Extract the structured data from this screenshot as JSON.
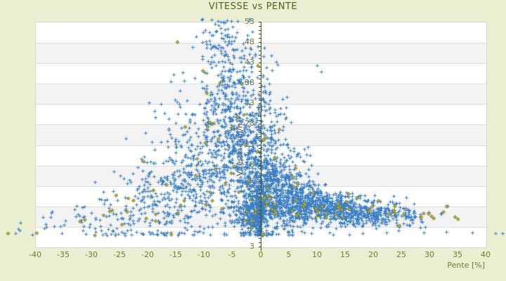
{
  "chart_data": {
    "type": "scatter",
    "title": "VITESSE vs PENTE",
    "xlabel": "Pente [%]",
    "ylabel": "Vitesse [km/h]",
    "xlim": [
      -40,
      40
    ],
    "ylim": [
      -2,
      53
    ],
    "x_ticks": [
      -40,
      -35,
      -30,
      -25,
      -20,
      -15,
      -10,
      -5,
      0,
      5,
      10,
      15,
      20,
      25,
      30,
      35,
      40
    ],
    "y_ticks": [
      53,
      48,
      43,
      38,
      33,
      28,
      23,
      18,
      13,
      8,
      3
    ],
    "y_axis_bottom_edge_label": "3",
    "grid": "horizontal-bands-every-5-units",
    "legend": "none",
    "vertical_axis_at_x": 0,
    "axis_minor_tick_step_y": 1,
    "marker_overflow_beyond_plot": true,
    "series": [
      {
        "name": "vitesse-principale",
        "marker": "plus",
        "color": "#3d80c6",
        "clusters": [
          {
            "n": 170,
            "p": -0.4,
            "v": 6,
            "sp": 0.5,
            "sv": 3
          },
          {
            "n": 180,
            "p": -1.5,
            "v": 12,
            "sp": 1.2,
            "sv": 6
          },
          {
            "n": 150,
            "p": -2,
            "v": 5.5,
            "sp": 1.5,
            "sv": 2.2
          },
          {
            "n": 200,
            "p": -3,
            "v": 22,
            "sp": 2,
            "sv": 9
          },
          {
            "n": 180,
            "p": -5,
            "v": 30,
            "sp": 2.5,
            "sv": 9
          },
          {
            "n": 120,
            "p": -6.5,
            "v": 40,
            "sp": 2.5,
            "sv": 7
          },
          {
            "n": 45,
            "p": -7.5,
            "v": 49,
            "sp": 2.5,
            "sv": 3
          },
          {
            "n": 160,
            "p": -7,
            "v": 18,
            "sp": 3.5,
            "sv": 8
          },
          {
            "n": 150,
            "p": -11,
            "v": 22,
            "sp": 3.5,
            "sv": 9
          },
          {
            "n": 150,
            "p": -13,
            "v": 12,
            "sp": 4,
            "sv": 7
          },
          {
            "n": 110,
            "p": -17,
            "v": 11,
            "sp": 4,
            "sv": 6
          },
          {
            "n": 70,
            "p": -21,
            "v": 8,
            "sp": 3.5,
            "sv": 5
          },
          {
            "n": 45,
            "p": -26,
            "v": 6,
            "sp": 3.5,
            "sv": 3
          },
          {
            "n": 18,
            "p": -32,
            "v": 5,
            "sp": 3,
            "sv": 1.8
          },
          {
            "n": 8,
            "p": -38,
            "v": 4.5,
            "sp": 2.5,
            "sv": 1.2
          },
          {
            "n": 200,
            "p": 1,
            "v": 14,
            "sp": 1.2,
            "sv": 8
          },
          {
            "n": 220,
            "p": 2.5,
            "v": 10.5,
            "sp": 1.8,
            "sv": 5
          },
          {
            "n": 230,
            "p": 5,
            "v": 9.5,
            "sp": 2.2,
            "sv": 3.5
          },
          {
            "n": 230,
            "p": 8,
            "v": 8.5,
            "sp": 2.6,
            "sv": 2.8
          },
          {
            "n": 210,
            "p": 11.5,
            "v": 7.5,
            "sp": 2.8,
            "sv": 2.2
          },
          {
            "n": 170,
            "p": 15,
            "v": 6.8,
            "sp": 3,
            "sv": 2
          },
          {
            "n": 130,
            "p": 18.5,
            "v": 6.2,
            "sp": 2.8,
            "sv": 1.8
          },
          {
            "n": 80,
            "p": 22,
            "v": 5.8,
            "sp": 2.4,
            "sv": 1.6
          },
          {
            "n": 30,
            "p": 25.5,
            "v": 5.2,
            "sp": 2,
            "sv": 1.4
          },
          {
            "n": 10,
            "p": 30,
            "v": 5,
            "sp": 3.5,
            "sv": 1.5
          },
          {
            "n": 70,
            "p": 1.8,
            "v": 27,
            "sp": 1.8,
            "sv": 6
          },
          {
            "n": 22,
            "p": 1.2,
            "v": 38,
            "sp": 1.2,
            "sv": 4
          },
          {
            "n": 60,
            "p": 5,
            "v": 17,
            "sp": 2.5,
            "sv": 4
          }
        ],
        "extra_points": [
          [
            -43.5,
            1.2
          ],
          [
            -42.8,
            1.9
          ],
          [
            -40.5,
            1.0
          ],
          [
            -35.2,
            1.2
          ],
          [
            -31,
            1.1
          ],
          [
            -28,
            1.0
          ],
          [
            -24,
            1.3
          ],
          [
            -19,
            1.1
          ],
          [
            -12,
            1.0
          ],
          [
            -6,
            0.9
          ],
          [
            0.6,
            44.5
          ],
          [
            -0.4,
            47
          ],
          [
            2.1,
            41.2
          ],
          [
            10.1,
            42.3
          ],
          [
            10.8,
            40.8
          ],
          [
            5.2,
            1.0
          ],
          [
            12.3,
            1.4
          ],
          [
            18.1,
            1.2
          ],
          [
            22.4,
            1.5
          ],
          [
            26.5,
            3.2
          ],
          [
            29,
            1.5
          ],
          [
            33,
            1.6
          ],
          [
            37.6,
            1.4
          ],
          [
            41.8,
            1.3
          ],
          [
            43,
            1.3
          ]
        ]
      },
      {
        "name": "vitesse-secondaire",
        "marker": "diamond",
        "color": "#b3b332",
        "stroke": "#6f6f1f",
        "clusters": [
          {
            "n": 10,
            "p": -20,
            "v": 8,
            "sp": 6,
            "sv": 4
          },
          {
            "n": 14,
            "p": -11,
            "v": 16,
            "sp": 5,
            "sv": 8
          },
          {
            "n": 12,
            "p": -5,
            "v": 22,
            "sp": 3,
            "sv": 10
          },
          {
            "n": 10,
            "p": -2,
            "v": 9,
            "sp": 2,
            "sv": 5
          },
          {
            "n": 10,
            "p": 1.5,
            "v": 13,
            "sp": 2,
            "sv": 7
          },
          {
            "n": 12,
            "p": 5,
            "v": 9,
            "sp": 3,
            "sv": 4
          },
          {
            "n": 12,
            "p": 10,
            "v": 7.5,
            "sp": 4,
            "sv": 2.5
          },
          {
            "n": 12,
            "p": 16,
            "v": 6.5,
            "sp": 4,
            "sv": 2
          },
          {
            "n": 9,
            "p": 22,
            "v": 6,
            "sp": 3,
            "sv": 1.5
          },
          {
            "n": 7,
            "p": 30,
            "v": 5.5,
            "sp": 4,
            "sv": 1.2
          },
          {
            "n": 5,
            "p": -29,
            "v": 5,
            "sp": 4,
            "sv": 2
          },
          {
            "n": 6,
            "p": -8,
            "v": 36,
            "sp": 3,
            "sv": 6
          }
        ],
        "extra_points": [
          [
            -44.8,
            1.2
          ],
          [
            -39.7,
            1.3
          ],
          [
            -25.6,
            10.5
          ],
          [
            30.8,
            4.9
          ],
          [
            34.6,
            5.2
          ],
          [
            35.1,
            4.7
          ]
        ]
      }
    ],
    "colors": {
      "background": "#ebefd1",
      "plot_background": "#ffffff",
      "band_alt": "#f3f3f3",
      "gridline": "#dedede",
      "plot_border": "#d8d8d8",
      "axis_line": "#454e12",
      "tick_label": "#76762f",
      "title": "#535f16",
      "y_axis_title": "#45463a",
      "series_blue": "#3d80c6",
      "series_olive": "#b3b332"
    }
  }
}
